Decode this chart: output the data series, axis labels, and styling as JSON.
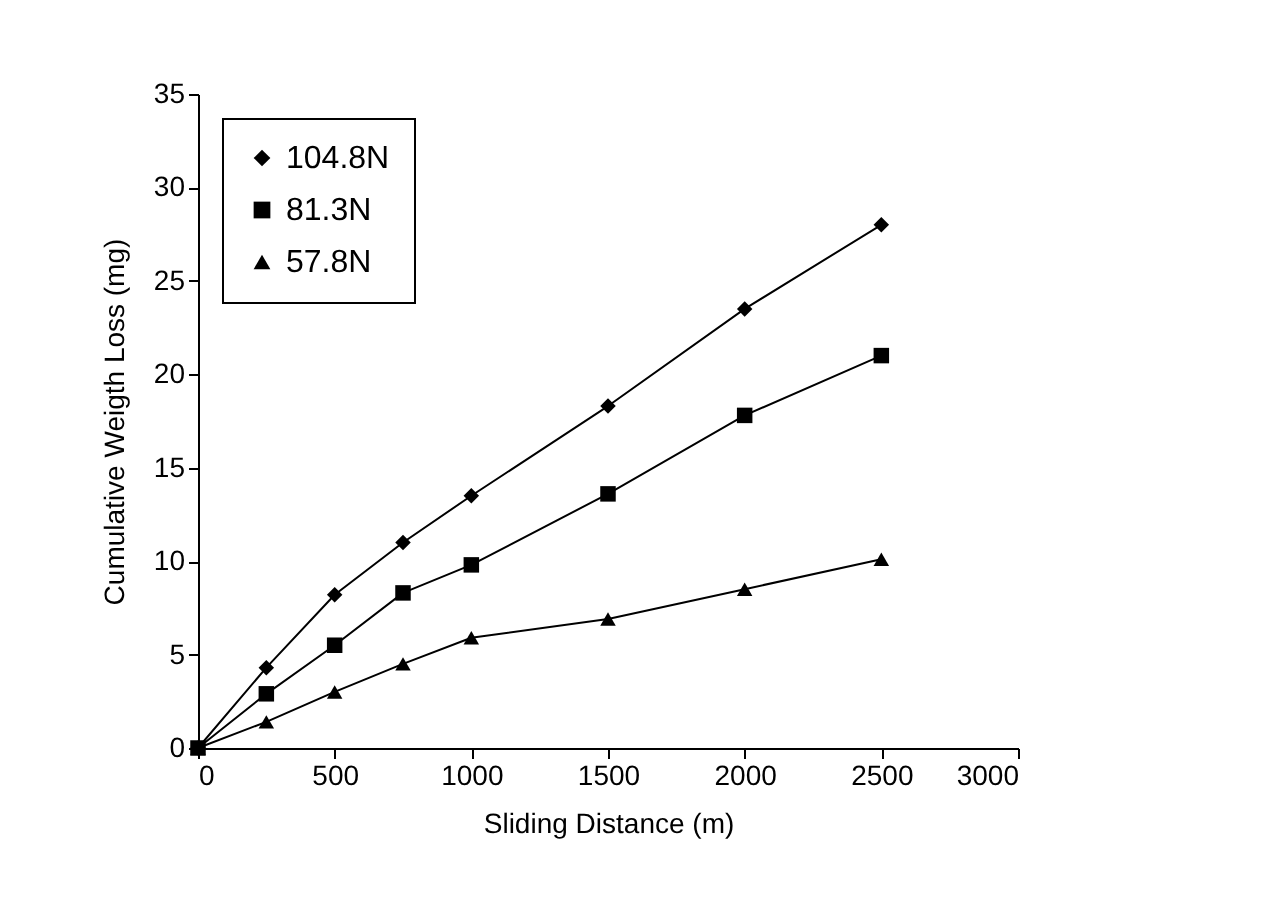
{
  "chart_data": {
    "type": "line",
    "xlabel": "Sliding Distance (m)",
    "ylabel": "Cumulative Weigth Loss (mg)",
    "x": [
      0,
      250,
      500,
      750,
      1000,
      1500,
      2000,
      2500
    ],
    "series": [
      {
        "name": "104.8N",
        "color": "#000000",
        "marker": "diamond",
        "values": [
          0,
          4.3,
          8.2,
          11,
          13.5,
          18.3,
          23.5,
          28
        ]
      },
      {
        "name": "81.3N",
        "color": "#000000",
        "marker": "square",
        "values": [
          0,
          2.9,
          5.5,
          8.3,
          9.8,
          13.6,
          17.8,
          21
        ]
      },
      {
        "name": "57.8N",
        "color": "#000000",
        "marker": "triangle",
        "values": [
          0,
          1.4,
          3.0,
          4.5,
          5.9,
          6.9,
          8.5,
          10.1
        ]
      }
    ],
    "xlim": [
      0,
      3000
    ],
    "xticks": [
      0,
      500,
      1000,
      1500,
      2000,
      2500,
      3000
    ],
    "ylim": [
      0,
      35
    ],
    "yticks": [
      0,
      5,
      10,
      15,
      20,
      25,
      30,
      35
    ],
    "grid": false,
    "legend": "top left",
    "line_style": "solid"
  }
}
